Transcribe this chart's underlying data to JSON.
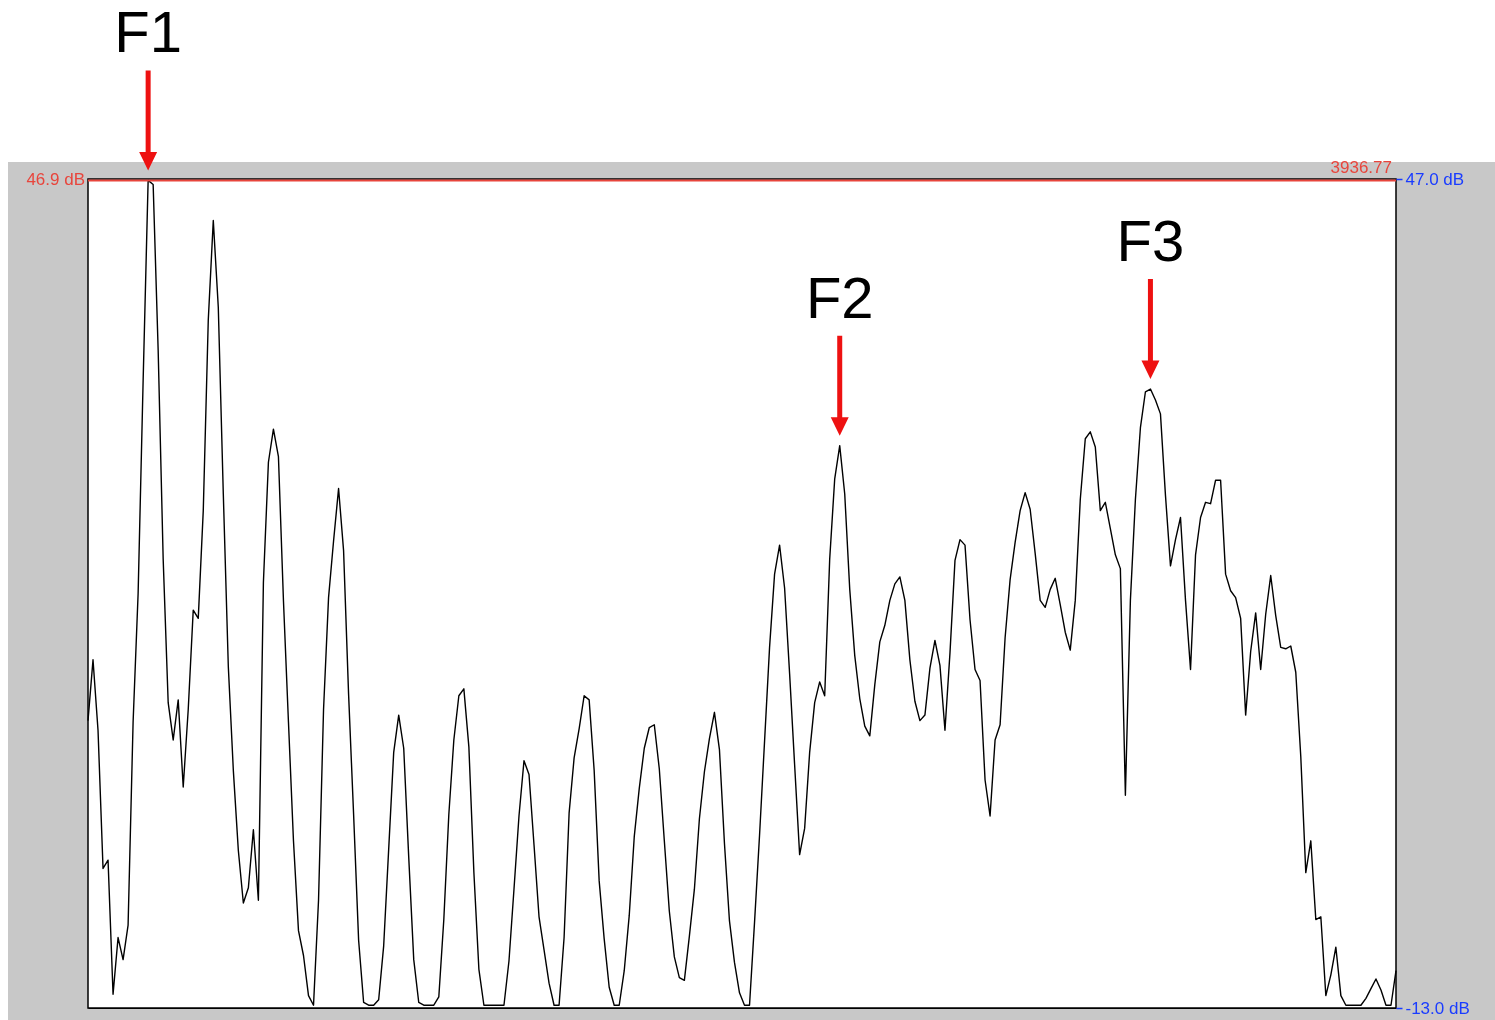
{
  "chart_data": {
    "type": "line",
    "categories": [
      null,
      null,
      null,
      null,
      null,
      null,
      null,
      null,
      null,
      null,
      null,
      null,
      null,
      null,
      null,
      null,
      null,
      null,
      null,
      null,
      null,
      null,
      null,
      null,
      null,
      null,
      null,
      null,
      null,
      null,
      null,
      null,
      null,
      null,
      null,
      null,
      null,
      null,
      null,
      null,
      null,
      null,
      null,
      null,
      null,
      null,
      null,
      null,
      null,
      null,
      null,
      null,
      null,
      null,
      null,
      null,
      null,
      null,
      null,
      null,
      null,
      null,
      null,
      null,
      null,
      null,
      null,
      null,
      null,
      null,
      null,
      null,
      null,
      null,
      null,
      null,
      null,
      null,
      null,
      null,
      null,
      null,
      null,
      null,
      null,
      null,
      null,
      null,
      null,
      null,
      null,
      null,
      null,
      null,
      null,
      null,
      null,
      null,
      null,
      null,
      null,
      null,
      null,
      null,
      null,
      null,
      null,
      null,
      null,
      null,
      null,
      null,
      null,
      null,
      null,
      null,
      null,
      null,
      null,
      null,
      null,
      null,
      null,
      null,
      null,
      null,
      null,
      null,
      null,
      null,
      null,
      null,
      null,
      null,
      null,
      null,
      null,
      null,
      null,
      null,
      null,
      null,
      null,
      null,
      null,
      null,
      null,
      null,
      null,
      null,
      null,
      null,
      null,
      null,
      null,
      null,
      null,
      null,
      null,
      null,
      null,
      null,
      null,
      null,
      null,
      null,
      null,
      null,
      null,
      null,
      null,
      null,
      null,
      null,
      null,
      null,
      null,
      null,
      null,
      null,
      null,
      null,
      null,
      null,
      null,
      null,
      null,
      null,
      null,
      null,
      null,
      null,
      null,
      null,
      null,
      null,
      null,
      null,
      null,
      null,
      null,
      null,
      null,
      null,
      null,
      null,
      null,
      null,
      null,
      null,
      null,
      null,
      null,
      null,
      null,
      null,
      null,
      null,
      null,
      null,
      null,
      null,
      null,
      null,
      null,
      null,
      null,
      null,
      null,
      null,
      null,
      null,
      null,
      null,
      null,
      null,
      null,
      null,
      null,
      null,
      null,
      null,
      null,
      null,
      null,
      null,
      null,
      null,
      null,
      null,
      null,
      null,
      null,
      null,
      null,
      null,
      null,
      null,
      null,
      null,
      null,
      null
    ],
    "series": [
      {
        "color": "#000000",
        "values": [
          7.8,
          12.2,
          7.1,
          -2.9,
          -2.3,
          -12.0,
          -7.9,
          -9.5,
          -7.0,
          7.7,
          17.0,
          32.4,
          46.9,
          46.6,
          34.6,
          19.5,
          9.1,
          6.4,
          9.3,
          3.0,
          8.6,
          15.8,
          15.2,
          23.0,
          36.8,
          44.0,
          37.7,
          24.2,
          11.7,
          4.2,
          -1.6,
          -5.4,
          -4.3,
          -0.1,
          -5.2,
          17.8,
          26.5,
          28.9,
          26.9,
          16.5,
          7.7,
          -0.9,
          -7.4,
          -9.2,
          -12.1,
          -12.8,
          -5.2,
          8.6,
          16.7,
          20.8,
          24.6,
          20.1,
          9.7,
          1.0,
          -8.1,
          -12.6,
          -12.8,
          -12.8,
          -12.4,
          -8.5,
          -1.5,
          5.5,
          8.2,
          5.8,
          -2.1,
          -9.5,
          -12.6,
          -12.8,
          -12.8,
          -12.8,
          -12.2,
          -6.6,
          1.0,
          6.4,
          9.6,
          10.1,
          5.9,
          -3.2,
          -10.2,
          -12.8,
          -12.8,
          -12.8,
          -12.8,
          -12.8,
          -9.6,
          -4.4,
          0.9,
          4.9,
          3.9,
          -1.2,
          -6.4,
          -8.8,
          -11.2,
          -12.8,
          -12.8,
          -7.9,
          1.1,
          5.1,
          7.2,
          9.6,
          9.3,
          4.2,
          -3.8,
          -8.0,
          -11.5,
          -12.8,
          -12.8,
          -10.3,
          -6.3,
          -0.6,
          2.9,
          5.8,
          7.3,
          7.5,
          4.3,
          -0.9,
          -6.0,
          -9.3,
          -10.8,
          -11.0,
          -7.8,
          -4.4,
          0.7,
          4.1,
          6.5,
          8.4,
          5.7,
          -1.1,
          -6.7,
          -9.7,
          -11.9,
          -12.8,
          -12.8,
          -6.8,
          -0.5,
          6.3,
          13.1,
          18.4,
          20.5,
          17.4,
          11.2,
          4.6,
          -1.9,
          0.0,
          5.5,
          9.1,
          10.6,
          9.6,
          19.5,
          25.3,
          27.7,
          24.2,
          17.3,
          12.5,
          9.4,
          7.4,
          6.7,
          10.4,
          13.5,
          14.7,
          16.5,
          17.7,
          18.2,
          16.5,
          12.2,
          9.2,
          7.8,
          8.2,
          11.6,
          13.6,
          11.8,
          7.1,
          12.7,
          19.4,
          20.9,
          20.5,
          15.1,
          11.5,
          10.7,
          3.5,
          0.9,
          6.4,
          7.5,
          13.8,
          18.0,
          20.7,
          23.0,
          24.3,
          23.1,
          19.9,
          16.5,
          16.0,
          17.3,
          18.1,
          16.2,
          14.2,
          12.9,
          16.5,
          23.8,
          28.2,
          28.7,
          27.6,
          23.0,
          23.6,
          21.7,
          19.8,
          18.8,
          2.4,
          16.5,
          23.8,
          29.0,
          31.6,
          31.8,
          31.0,
          30.0,
          24.1,
          19.0,
          20.9,
          22.5,
          16.5,
          11.5,
          19.8,
          22.5,
          23.6,
          23.5,
          25.2,
          25.2,
          18.4,
          17.2,
          16.7,
          15.2,
          8.2,
          12.8,
          15.6,
          11.5,
          15.5,
          18.3,
          15.4,
          13.1,
          13.0,
          13.2,
          11.3,
          5.2,
          -3.2,
          -0.9,
          -6.6,
          -6.4,
          -12.1,
          -10.6,
          -8.6,
          -12.1,
          -12.8,
          -12.8,
          -12.8,
          -12.8,
          -12.3,
          -11.6,
          -10.9,
          -11.7,
          -12.8,
          -12.8,
          -10.3
        ]
      }
    ],
    "ylim": [
      -13,
      47
    ],
    "yticks": [
      {
        "value": 47,
        "label": "47.0 dB"
      },
      {
        "value": -13,
        "label": "-13.0 dB"
      }
    ],
    "tick_labels": "y",
    "ref_lines": [
      {
        "axis": "y",
        "value": 46.9,
        "label": "46.9 dB",
        "color": "#e8453c",
        "line_style": "solid"
      }
    ],
    "annotations": [
      "3936.77",
      {
        "text": "F1",
        "y": 46.9
      },
      {
        "text": "F2",
        "y": 27.7
      },
      {
        "text": "F3",
        "y": 31.8
      }
    ]
  }
}
